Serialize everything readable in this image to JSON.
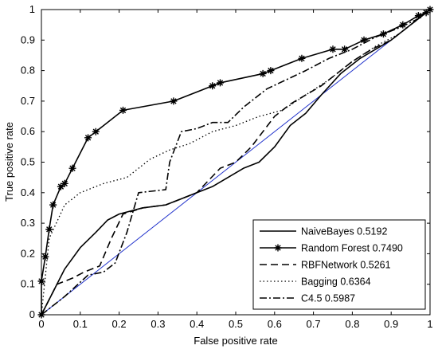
{
  "chart_data": {
    "type": "line",
    "title": "",
    "xlabel": "False positive rate",
    "ylabel": "True positive rate",
    "xlim": [
      0,
      1
    ],
    "ylim": [
      0,
      1
    ],
    "xticks": [
      "0",
      "0.1",
      "0.2",
      "0.3",
      "0.4",
      "0.5",
      "0.6",
      "0.7",
      "0.8",
      "0.9",
      "1"
    ],
    "yticks": [
      "0",
      "0.1",
      "0.2",
      "0.3",
      "0.4",
      "0.5",
      "0.6",
      "0.7",
      "0.8",
      "0.9",
      "1"
    ],
    "grid": false,
    "legend_position": "bottom-right",
    "series": [
      {
        "name": "NaiveBayes 0.5192",
        "style": "solid",
        "color": "#000000",
        "marker": "none",
        "points": [
          [
            0,
            0
          ],
          [
            0.06,
            0.15
          ],
          [
            0.1,
            0.22
          ],
          [
            0.14,
            0.27
          ],
          [
            0.17,
            0.31
          ],
          [
            0.2,
            0.33
          ],
          [
            0.26,
            0.35
          ],
          [
            0.32,
            0.36
          ],
          [
            0.36,
            0.38
          ],
          [
            0.4,
            0.4
          ],
          [
            0.44,
            0.42
          ],
          [
            0.48,
            0.45
          ],
          [
            0.52,
            0.48
          ],
          [
            0.56,
            0.5
          ],
          [
            0.6,
            0.55
          ],
          [
            0.64,
            0.62
          ],
          [
            0.68,
            0.66
          ],
          [
            0.72,
            0.72
          ],
          [
            0.77,
            0.79
          ],
          [
            0.82,
            0.84
          ],
          [
            0.86,
            0.87
          ],
          [
            0.9,
            0.9
          ],
          [
            0.95,
            0.95
          ],
          [
            1,
            1
          ]
        ]
      },
      {
        "name": "Random Forest 0.7490",
        "style": "solid",
        "color": "#000000",
        "marker": "star",
        "points": [
          [
            0,
            0
          ],
          [
            0,
            0.11
          ],
          [
            0.01,
            0.19
          ],
          [
            0.02,
            0.28
          ],
          [
            0.03,
            0.36
          ],
          [
            0.05,
            0.42
          ],
          [
            0.06,
            0.43
          ],
          [
            0.08,
            0.48
          ],
          [
            0.12,
            0.58
          ],
          [
            0.14,
            0.6
          ],
          [
            0.21,
            0.67
          ],
          [
            0.34,
            0.7
          ],
          [
            0.44,
            0.75
          ],
          [
            0.46,
            0.76
          ],
          [
            0.57,
            0.79
          ],
          [
            0.59,
            0.8
          ],
          [
            0.67,
            0.84
          ],
          [
            0.75,
            0.87
          ],
          [
            0.78,
            0.87
          ],
          [
            0.83,
            0.9
          ],
          [
            0.88,
            0.92
          ],
          [
            0.93,
            0.95
          ],
          [
            0.97,
            0.98
          ],
          [
            0.99,
            0.99
          ],
          [
            1,
            1
          ]
        ]
      },
      {
        "name": "RBFNetwork 0.5261",
        "style": "dashed",
        "color": "#000000",
        "marker": "none",
        "points": [
          [
            0,
            0
          ],
          [
            0.04,
            0.1
          ],
          [
            0.08,
            0.12
          ],
          [
            0.11,
            0.14
          ],
          [
            0.15,
            0.16
          ],
          [
            0.18,
            0.25
          ],
          [
            0.21,
            0.33
          ],
          [
            0.26,
            0.35
          ],
          [
            0.32,
            0.36
          ],
          [
            0.36,
            0.38
          ],
          [
            0.4,
            0.4
          ],
          [
            0.43,
            0.44
          ],
          [
            0.46,
            0.48
          ],
          [
            0.5,
            0.5
          ],
          [
            0.54,
            0.55
          ],
          [
            0.57,
            0.6
          ],
          [
            0.6,
            0.65
          ],
          [
            0.64,
            0.69
          ],
          [
            0.68,
            0.72
          ],
          [
            0.72,
            0.75
          ],
          [
            0.76,
            0.79
          ],
          [
            0.8,
            0.83
          ],
          [
            0.85,
            0.87
          ],
          [
            0.9,
            0.9
          ],
          [
            0.95,
            0.95
          ],
          [
            1,
            1
          ]
        ]
      },
      {
        "name": "Bagging 0.6364",
        "style": "dotted",
        "color": "#000000",
        "marker": "none",
        "points": [
          [
            0,
            0
          ],
          [
            0.02,
            0.25
          ],
          [
            0.06,
            0.36
          ],
          [
            0.1,
            0.4
          ],
          [
            0.16,
            0.43
          ],
          [
            0.22,
            0.45
          ],
          [
            0.28,
            0.51
          ],
          [
            0.33,
            0.54
          ],
          [
            0.38,
            0.56
          ],
          [
            0.44,
            0.6
          ],
          [
            0.5,
            0.62
          ],
          [
            0.56,
            0.65
          ],
          [
            0.62,
            0.67
          ],
          [
            0.68,
            0.72
          ],
          [
            0.74,
            0.77
          ],
          [
            0.8,
            0.83
          ],
          [
            0.86,
            0.88
          ],
          [
            0.92,
            0.92
          ],
          [
            0.97,
            0.97
          ],
          [
            1,
            1
          ]
        ]
      },
      {
        "name": "C4.5 0.5987",
        "style": "dashdot",
        "color": "#000000",
        "marker": "none",
        "points": [
          [
            0,
            0
          ],
          [
            0.06,
            0.06
          ],
          [
            0.12,
            0.13
          ],
          [
            0.16,
            0.14
          ],
          [
            0.19,
            0.17
          ],
          [
            0.22,
            0.27
          ],
          [
            0.25,
            0.4
          ],
          [
            0.32,
            0.41
          ],
          [
            0.33,
            0.5
          ],
          [
            0.36,
            0.6
          ],
          [
            0.4,
            0.61
          ],
          [
            0.44,
            0.63
          ],
          [
            0.48,
            0.63
          ],
          [
            0.52,
            0.68
          ],
          [
            0.58,
            0.74
          ],
          [
            0.63,
            0.77
          ],
          [
            0.68,
            0.8
          ],
          [
            0.74,
            0.84
          ],
          [
            0.8,
            0.87
          ],
          [
            0.86,
            0.91
          ],
          [
            0.92,
            0.94
          ],
          [
            0.97,
            0.97
          ],
          [
            1,
            1
          ]
        ]
      },
      {
        "name": "",
        "style": "solid",
        "color": "#2233cc",
        "marker": "none",
        "points": [
          [
            0,
            0
          ],
          [
            1,
            1
          ]
        ]
      }
    ]
  }
}
